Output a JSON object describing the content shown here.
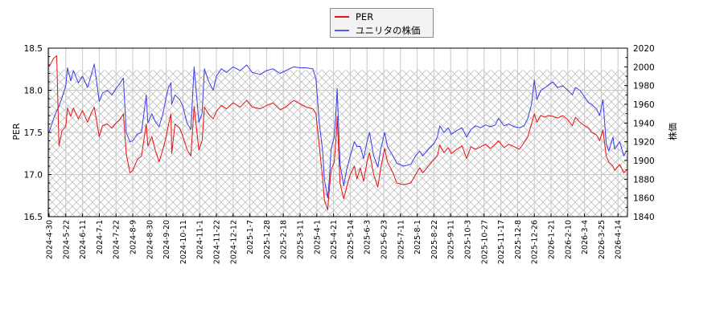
{
  "legend": {
    "entries": [
      {
        "label": "PER",
        "color": "#e81010"
      },
      {
        "label": "ユニリタの株価",
        "color": "#5a5aee"
      }
    ]
  },
  "chart_data": {
    "type": "line",
    "title": "",
    "xlabel": "",
    "ylabel": "PER",
    "ylabel_right": "株価",
    "ylim": [
      16.5,
      18.5
    ],
    "ylim_right": [
      1840,
      2020
    ],
    "yticks_left": [
      16.5,
      17.0,
      17.5,
      18.0,
      18.5
    ],
    "yticks_left_labels": [
      "16.5",
      "17.0",
      "17.5",
      "18.0",
      "18.5"
    ],
    "yticks_right": [
      1840,
      1860,
      1880,
      1900,
      1920,
      1940,
      1960,
      1980,
      2000,
      2020
    ],
    "yticks_right_labels": [
      "1840",
      "1860",
      "1880",
      "1900",
      "1920",
      "1940",
      "1960",
      "1980",
      "2000",
      "2020"
    ],
    "x_ticks": [
      "2024-4-30",
      "2024-5-22",
      "2024-6-11",
      "2024-7-1",
      "2024-7-22",
      "2024-8-9",
      "2024-8-30",
      "2024-9-20",
      "2024-10-11",
      "2024-11-1",
      "2024-11-22",
      "2024-12-12",
      "2025-1-7",
      "2025-1-28",
      "2025-2-18",
      "2025-3-11",
      "2025-4-1",
      "2025-4-21",
      "2025-5-14",
      "2025-6-3",
      "2025-6-23",
      "2025-7-11",
      "2025-8-1",
      "2025-8-22",
      "2025-9-11",
      "2025-10-3",
      "2025-10-27",
      "2025-11-17",
      "2025-12-8",
      "2025-12-26",
      "2026-1-21",
      "2026-2-10",
      "2026-3-4",
      "2026-3-25",
      "2026-4-14"
    ],
    "grid": true,
    "legend_position": "upper center (above plot)",
    "hatch_band_per": [
      16.5,
      18.24
    ],
    "x": [
      "2024-4-30",
      "2024-5-6",
      "2024-5-10",
      "2024-5-13",
      "2024-5-17",
      "2024-5-22",
      "2024-5-24",
      "2024-5-28",
      "2024-5-31",
      "2024-6-6",
      "2024-6-11",
      "2024-6-17",
      "2024-6-21",
      "2024-6-25",
      "2024-7-1",
      "2024-7-5",
      "2024-7-11",
      "2024-7-17",
      "2024-7-22",
      "2024-7-26",
      "2024-7-30",
      "2024-8-2",
      "2024-8-6",
      "2024-8-9",
      "2024-8-15",
      "2024-8-20",
      "2024-8-26",
      "2024-8-28",
      "2024-9-2",
      "2024-9-6",
      "2024-9-11",
      "2024-9-16",
      "2024-9-20",
      "2024-9-23",
      "2024-9-26",
      "2024-9-27",
      "2024-10-1",
      "2024-10-7",
      "2024-10-11",
      "2024-10-16",
      "2024-10-21",
      "2024-10-25",
      "2024-10-31",
      "2024-11-4",
      "2024-11-7",
      "2024-11-12",
      "2024-11-18",
      "2024-11-22",
      "2024-11-28",
      "2024-12-4",
      "2024-12-12",
      "2024-12-23",
      "2025-1-2",
      "2025-1-10",
      "2025-1-20",
      "2025-1-28",
      "2025-2-5",
      "2025-2-14",
      "2025-2-21",
      "2025-3-3",
      "2025-3-11",
      "2025-3-19",
      "2025-3-27",
      "2025-3-31",
      "2025-4-4",
      "2025-4-8",
      "2025-4-10",
      "2025-4-14",
      "2025-4-16",
      "2025-4-18",
      "2025-4-22",
      "2025-4-25",
      "2025-4-26",
      "2025-4-30",
      "2025-5-5",
      "2025-5-9",
      "2025-5-14",
      "2025-5-19",
      "2025-5-22",
      "2025-5-26",
      "2025-5-30",
      "2025-6-3",
      "2025-6-6",
      "2025-6-11",
      "2025-6-16",
      "2025-6-19",
      "2025-6-24",
      "2025-6-27",
      "2025-7-3",
      "2025-7-7",
      "2025-7-15",
      "2025-7-24",
      "2025-7-30",
      "2025-8-4",
      "2025-8-8",
      "2025-8-15",
      "2025-8-22",
      "2025-8-26",
      "2025-8-29",
      "2025-9-3",
      "2025-9-8",
      "2025-9-12",
      "2025-9-19",
      "2025-9-26",
      "2025-10-2",
      "2025-10-8",
      "2025-10-15",
      "2025-10-22",
      "2025-10-29",
      "2025-11-4",
      "2025-11-10",
      "2025-11-14",
      "2025-11-21",
      "2025-11-27",
      "2025-12-4",
      "2025-12-10",
      "2025-12-15",
      "2025-12-19",
      "2025-12-23",
      "2025-12-26",
      "2025-12-30",
      "2026-1-5",
      "2026-1-12",
      "2026-1-16",
      "2026-1-23",
      "2026-1-29",
      "2026-2-4",
      "2026-2-10",
      "2026-2-16",
      "2026-2-20",
      "2026-2-26",
      "2026-3-4",
      "2026-3-9",
      "2026-3-13",
      "2026-3-19",
      "2026-3-23",
      "2026-3-27",
      "2026-3-31",
      "2026-4-3",
      "2026-4-8",
      "2026-4-10",
      "2026-4-16",
      "2026-4-21",
      "2026-4-24"
    ],
    "series": [
      {
        "name": "PER",
        "axis": "left",
        "color": "#e81010",
        "values": [
          18.28,
          18.38,
          18.41,
          17.34,
          17.52,
          17.57,
          17.79,
          17.69,
          17.79,
          17.66,
          17.76,
          17.62,
          17.72,
          17.8,
          17.45,
          17.58,
          17.6,
          17.55,
          17.61,
          17.65,
          17.72,
          17.25,
          17.02,
          17.05,
          17.18,
          17.22,
          17.6,
          17.34,
          17.45,
          17.3,
          17.15,
          17.3,
          17.45,
          17.6,
          17.72,
          17.25,
          17.6,
          17.55,
          17.45,
          17.3,
          17.22,
          17.81,
          17.29,
          17.4,
          17.8,
          17.72,
          17.66,
          17.75,
          17.82,
          17.78,
          17.85,
          17.8,
          17.88,
          17.8,
          17.78,
          17.82,
          17.85,
          17.77,
          17.8,
          17.88,
          17.84,
          17.8,
          17.78,
          17.72,
          17.34,
          16.95,
          16.7,
          16.58,
          16.82,
          17.05,
          17.15,
          17.5,
          17.69,
          16.9,
          16.71,
          16.85,
          17.0,
          17.1,
          16.95,
          17.08,
          16.92,
          17.15,
          17.26,
          17.0,
          16.85,
          17.05,
          17.31,
          17.15,
          17.02,
          16.9,
          16.88,
          16.9,
          17.0,
          17.08,
          17.02,
          17.1,
          17.18,
          17.22,
          17.35,
          17.26,
          17.32,
          17.25,
          17.3,
          17.34,
          17.19,
          17.33,
          17.3,
          17.33,
          17.36,
          17.31,
          17.36,
          17.4,
          17.32,
          17.36,
          17.33,
          17.3,
          17.38,
          17.45,
          17.6,
          17.72,
          17.62,
          17.7,
          17.68,
          17.7,
          17.69,
          17.67,
          17.7,
          17.65,
          17.58,
          17.68,
          17.62,
          17.58,
          17.55,
          17.5,
          17.47,
          17.4,
          17.53,
          17.22,
          17.15,
          17.1,
          17.05,
          17.12,
          17.02,
          17.05
        ]
      },
      {
        "name": "ユニリタの株価",
        "axis": "right",
        "color": "#3c3ce6",
        "values": [
          1930,
          1945,
          1953,
          1958,
          1967,
          1980,
          1999,
          1985,
          1996,
          1983,
          1990,
          1978,
          1990,
          2003,
          1963,
          1972,
          1975,
          1970,
          1977,
          1982,
          1988,
          1930,
          1920,
          1921,
          1928,
          1930,
          1970,
          1940,
          1950,
          1942,
          1936,
          1950,
          1968,
          1978,
          1983,
          1960,
          1970,
          1965,
          1958,
          1940,
          1933,
          2000,
          1941,
          1950,
          1998,
          1985,
          1975,
          1990,
          1998,
          1994,
          2000,
          1996,
          2002,
          1994,
          1992,
          1996,
          1998,
          1993,
          1996,
          2000,
          1999,
          1999,
          1998,
          1987,
          1940,
          1910,
          1880,
          1860,
          1880,
          1912,
          1925,
          1960,
          1977,
          1896,
          1873,
          1890,
          1905,
          1920,
          1915,
          1915,
          1902,
          1920,
          1930,
          1905,
          1893,
          1910,
          1930,
          1915,
          1905,
          1897,
          1894,
          1896,
          1905,
          1910,
          1905,
          1912,
          1918,
          1925,
          1937,
          1930,
          1935,
          1928,
          1932,
          1935,
          1925,
          1933,
          1937,
          1935,
          1938,
          1936,
          1938,
          1945,
          1937,
          1939,
          1936,
          1935,
          1937,
          1945,
          1960,
          1986,
          1965,
          1975,
          1978,
          1980,
          1984,
          1978,
          1980,
          1975,
          1970,
          1978,
          1975,
          1968,
          1962,
          1960,
          1955,
          1948,
          1965,
          1918,
          1910,
          1925,
          1912,
          1920,
          1905,
          1910
        ]
      }
    ]
  }
}
